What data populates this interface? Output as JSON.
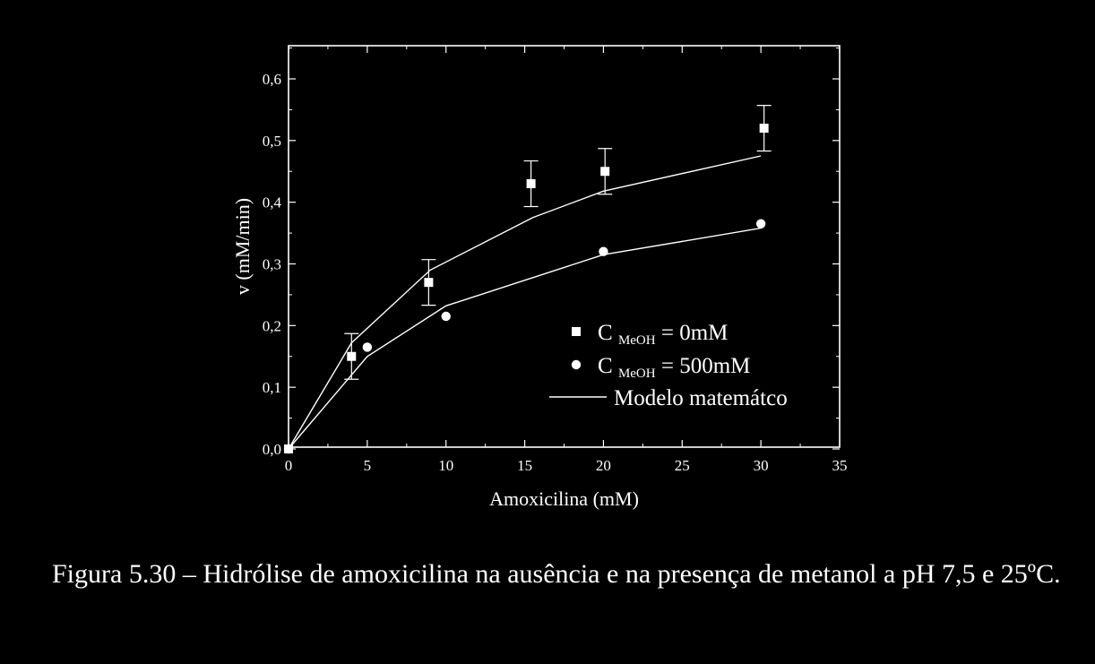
{
  "colors": {
    "background": "#000000",
    "foreground": "#ffffff"
  },
  "chart_data": {
    "type": "scatter",
    "xlabel": "Amoxicilina (mM)",
    "ylabel": "v (mM/min)",
    "xlim": [
      0,
      35
    ],
    "ylim": [
      0,
      0.65
    ],
    "xticks": [
      0,
      5,
      10,
      15,
      20,
      25,
      30,
      35
    ],
    "yticks": [
      0.0,
      0.1,
      0.2,
      0.3,
      0.4,
      0.5,
      0.6
    ],
    "xtick_labels": [
      "0",
      "5",
      "10",
      "15",
      "20",
      "25",
      "30",
      "35"
    ],
    "ytick_labels": [
      "0,0",
      "0,1",
      "0,2",
      "0,3",
      "0,4",
      "0,5",
      "0,6"
    ],
    "grid": false,
    "legend_position": "bottom-right",
    "series": [
      {
        "marker": "square",
        "legend_main": "C",
        "legend_sub": "MeOH",
        "legend_rest": "= 0mM",
        "x": [
          0,
          4,
          8.9,
          15.4,
          20.1,
          30.2
        ],
        "y": [
          0.0,
          0.15,
          0.27,
          0.43,
          0.45,
          0.52
        ],
        "error": [
          0.0,
          0.037,
          0.037,
          0.037,
          0.037,
          0.037
        ]
      },
      {
        "marker": "circle",
        "legend_main": "C",
        "legend_sub": "MeOH",
        "legend_rest": "= 500mM",
        "x": [
          0,
          5,
          10,
          20,
          30
        ],
        "y": [
          0.0,
          0.165,
          0.215,
          0.32,
          0.365
        ]
      }
    ],
    "model_lines": {
      "legend_label": "Modelo matemátco",
      "lines": [
        {
          "x": [
            0,
            4,
            9,
            15.5,
            20,
            30
          ],
          "y": [
            0.0,
            0.172,
            0.29,
            0.375,
            0.418,
            0.475
          ]
        },
        {
          "x": [
            0,
            5,
            10,
            20,
            30
          ],
          "y": [
            0.0,
            0.15,
            0.232,
            0.315,
            0.358
          ]
        }
      ]
    }
  },
  "caption": {
    "text": "Figura 5.30 – Hidrólise de amoxicilina na ausência e na presença de metanol a pH 7,5 e 25ºC."
  }
}
